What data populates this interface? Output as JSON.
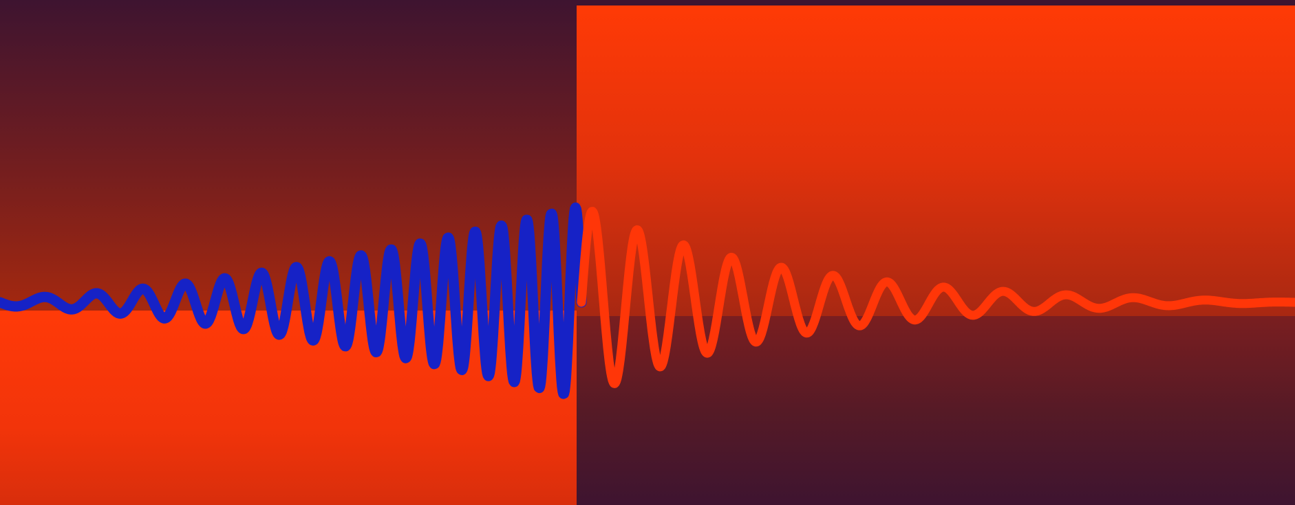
{
  "artwork": {
    "colors": {
      "dark_maroon": "#3e1430",
      "deep_red": "#8e2418",
      "bright_orange_red": "#ff3a08",
      "wave_blue": "#1622c6",
      "wave_orange": "#ff3608"
    },
    "wave_blue": {
      "cycles": 17,
      "amplitude_start": 0.04,
      "amplitude_end": 1.0,
      "description_shape": "chirp with increasing frequency and growing amplitude"
    },
    "wave_orange": {
      "cycles": 13,
      "amplitude_start": 1.0,
      "amplitude_end": 0.0,
      "description_shape": "decaying oscillation with decreasing frequency"
    }
  }
}
